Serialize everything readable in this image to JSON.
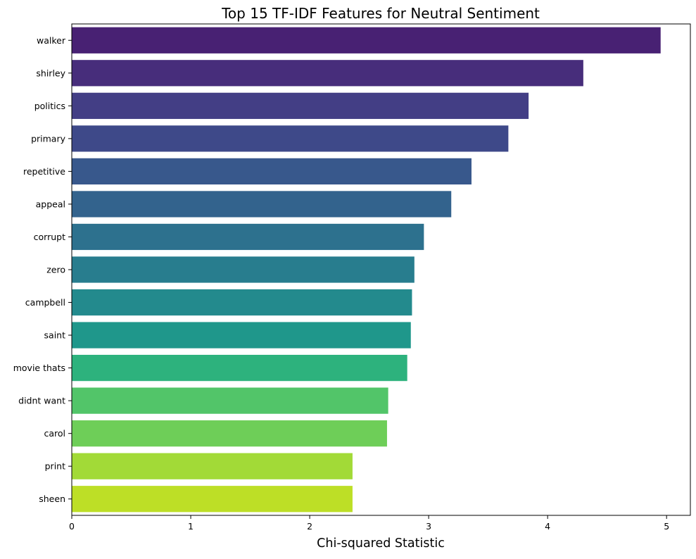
{
  "chart_data": {
    "type": "bar",
    "orientation": "horizontal",
    "title": "Top 15 TF-IDF Features for Neutral Sentiment",
    "xlabel": "Chi-squared Statistic",
    "ylabel": "",
    "categories": [
      "walker",
      "shirley",
      "politics",
      "primary",
      "repetitive",
      "appeal",
      "corrupt",
      "zero",
      "campbell",
      "saint",
      "movie thats",
      "didnt want",
      "carol",
      "print",
      "sheen"
    ],
    "values": [
      4.95,
      4.3,
      3.84,
      3.67,
      3.36,
      3.19,
      2.96,
      2.88,
      2.86,
      2.85,
      2.82,
      2.66,
      2.65,
      2.36,
      2.36
    ],
    "xlim": [
      0,
      5.2
    ],
    "xticks": [
      "0",
      "1",
      "2",
      "3",
      "4",
      "5"
    ],
    "grid": false,
    "legend": "none",
    "palette": "viridis",
    "colors": [
      "#482173",
      "#472d7b",
      "#433e85",
      "#3e4989",
      "#38588c",
      "#33638d",
      "#2d718e",
      "#287d8e",
      "#238a8d",
      "#1f978b",
      "#2db27d",
      "#52c569",
      "#6ece58",
      "#a2da37",
      "#bddf26"
    ]
  }
}
